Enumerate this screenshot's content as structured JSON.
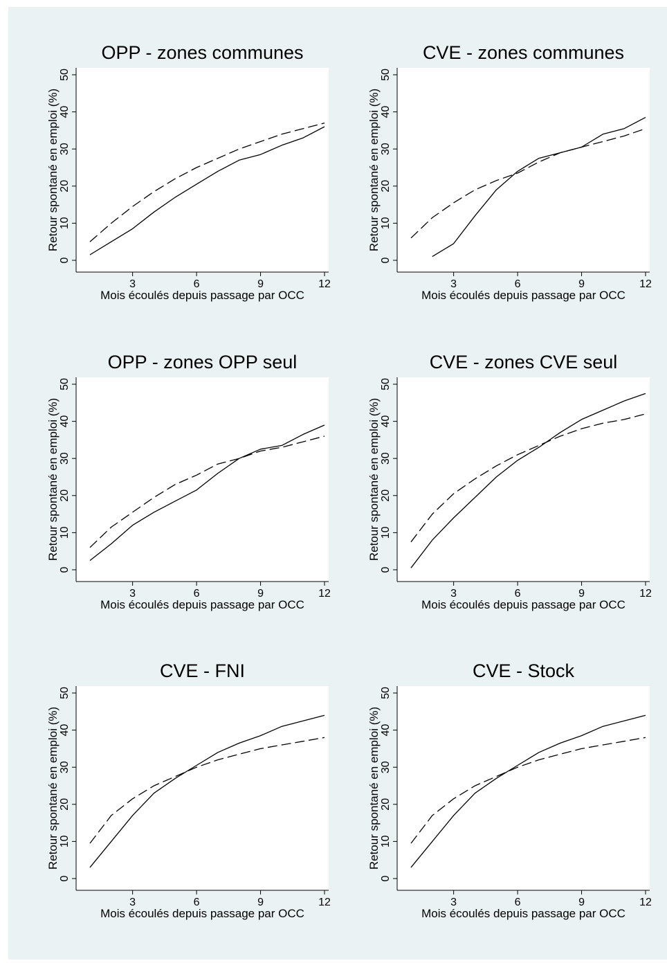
{
  "chart_data": [
    {
      "type": "line",
      "title": "OPP - zones communes",
      "xlabel": "Mois écoulés depuis passage par OCC",
      "ylabel": "Retour spontané en emploi (%)",
      "xlim": [
        1,
        12
      ],
      "ylim": [
        0,
        50
      ],
      "xticks": [
        "3",
        "6",
        "9",
        "12"
      ],
      "yticks": [
        "0",
        "10",
        "20",
        "30",
        "40",
        "50"
      ],
      "grid": false,
      "series": [
        {
          "style": "solid",
          "x": [
            1,
            2,
            3,
            4,
            5,
            6,
            7,
            8,
            9,
            10,
            11,
            12
          ],
          "y": [
            1.5,
            5,
            8.5,
            13,
            17,
            20.5,
            24,
            27,
            28.5,
            31,
            33,
            36
          ]
        },
        {
          "style": "dashed",
          "x": [
            1,
            2,
            3,
            4,
            5,
            6,
            7,
            8,
            9,
            10,
            11,
            12
          ],
          "y": [
            5,
            10,
            14.5,
            18.5,
            22,
            25,
            27.5,
            30,
            32,
            34,
            35.5,
            37
          ]
        }
      ]
    },
    {
      "type": "line",
      "title": "CVE - zones communes",
      "xlabel": "Mois écoulés depuis passage par OCC",
      "ylabel": "Retour spontané en emploi (%)",
      "xlim": [
        1,
        12
      ],
      "ylim": [
        0,
        50
      ],
      "xticks": [
        "3",
        "6",
        "9",
        "12"
      ],
      "yticks": [
        "0",
        "10",
        "20",
        "30",
        "40",
        "50"
      ],
      "grid": false,
      "series": [
        {
          "style": "solid",
          "x": [
            2,
            3,
            4,
            5,
            6,
            7,
            8,
            9,
            10,
            11,
            12
          ],
          "y": [
            1,
            4.5,
            12,
            19,
            24,
            27.5,
            29,
            30.5,
            34,
            35.5,
            38.5
          ]
        },
        {
          "style": "dashed",
          "x": [
            1,
            2,
            3,
            4,
            5,
            6,
            7,
            8,
            9,
            10,
            11,
            12
          ],
          "y": [
            6,
            11.5,
            15.5,
            19,
            21.5,
            23.5,
            26.5,
            29,
            30.5,
            32,
            33.5,
            35.5
          ]
        }
      ]
    },
    {
      "type": "line",
      "title": "OPP - zones OPP seul",
      "xlabel": "Mois écoulés depuis passage par OCC",
      "ylabel": "Retour spontané en emploi (%)",
      "xlim": [
        1,
        12
      ],
      "ylim": [
        0,
        50
      ],
      "xticks": [
        "3",
        "6",
        "9",
        "12"
      ],
      "yticks": [
        "0",
        "10",
        "20",
        "30",
        "40",
        "50"
      ],
      "grid": false,
      "series": [
        {
          "style": "solid",
          "x": [
            1,
            2,
            3,
            4,
            5,
            6,
            7,
            8,
            9,
            10,
            11,
            12
          ],
          "y": [
            2.5,
            7,
            12,
            15.5,
            18.5,
            21.5,
            26,
            30,
            32.5,
            33.5,
            36.5,
            39
          ]
        },
        {
          "style": "dashed",
          "x": [
            1,
            2,
            3,
            4,
            5,
            6,
            7,
            8,
            9,
            10,
            11,
            12
          ],
          "y": [
            6,
            11.5,
            15.5,
            19.5,
            23,
            25.5,
            28.5,
            30,
            32,
            33,
            34.5,
            36
          ]
        }
      ]
    },
    {
      "type": "line",
      "title": "CVE - zones CVE seul",
      "xlabel": "Mois écoulés depuis passage par OCC",
      "ylabel": "Retour spontané en emploi (%)",
      "xlim": [
        1,
        12
      ],
      "ylim": [
        0,
        50
      ],
      "xticks": [
        "3",
        "6",
        "9",
        "12"
      ],
      "yticks": [
        "0",
        "10",
        "20",
        "30",
        "40",
        "50"
      ],
      "grid": false,
      "series": [
        {
          "style": "solid",
          "x": [
            1,
            2,
            3,
            4,
            5,
            6,
            7,
            8,
            9,
            10,
            11,
            12
          ],
          "y": [
            0.5,
            8,
            14,
            19.5,
            25,
            29.5,
            33,
            37,
            40.5,
            43,
            45.5,
            47.5
          ]
        },
        {
          "style": "dashed",
          "x": [
            1,
            2,
            3,
            4,
            5,
            6,
            7,
            8,
            9,
            10,
            11,
            12
          ],
          "y": [
            7.5,
            15,
            20.5,
            24.5,
            28,
            31,
            33.5,
            36,
            38,
            39.5,
            40.5,
            42
          ]
        }
      ]
    },
    {
      "type": "line",
      "title": "CVE - FNI",
      "xlabel": "Mois écoulés depuis passage par OCC",
      "ylabel": "Retour spontané en emploi (%)",
      "xlim": [
        1,
        12
      ],
      "ylim": [
        0,
        50
      ],
      "xticks": [
        "3",
        "6",
        "9",
        "12"
      ],
      "yticks": [
        "0",
        "10",
        "20",
        "30",
        "40",
        "50"
      ],
      "grid": false,
      "series": [
        {
          "style": "solid",
          "x": [
            1,
            2,
            3,
            4,
            5,
            6,
            7,
            8,
            9,
            10,
            11,
            12
          ],
          "y": [
            3,
            10,
            17,
            23,
            27,
            30.5,
            34,
            36.5,
            38.5,
            41,
            42.5,
            44
          ]
        },
        {
          "style": "dashed",
          "x": [
            1,
            2,
            3,
            4,
            5,
            6,
            7,
            8,
            9,
            10,
            11,
            12
          ],
          "y": [
            9.5,
            17,
            21.5,
            25,
            27.5,
            30,
            32,
            33.5,
            35,
            36,
            37,
            38
          ]
        }
      ]
    },
    {
      "type": "line",
      "title": "CVE - Stock",
      "xlabel": "Mois écoulés depuis passage par OCC",
      "ylabel": "Retour spontané en emploi (%)",
      "xlim": [
        1,
        12
      ],
      "ylim": [
        0,
        50
      ],
      "xticks": [
        "3",
        "6",
        "9",
        "12"
      ],
      "yticks": [
        "0",
        "10",
        "20",
        "30",
        "40",
        "50"
      ],
      "grid": false,
      "series": [
        {
          "style": "solid",
          "x": [
            1,
            2,
            3,
            4,
            5,
            6,
            7,
            8,
            9,
            10,
            11,
            12
          ],
          "y": [
            3,
            10,
            17,
            23,
            27,
            30.5,
            34,
            36.5,
            38.5,
            41,
            42.5,
            44
          ]
        },
        {
          "style": "dashed",
          "x": [
            1,
            2,
            3,
            4,
            5,
            6,
            7,
            8,
            9,
            10,
            11,
            12
          ],
          "y": [
            9.5,
            17,
            21.5,
            25,
            27.5,
            30,
            32,
            33.5,
            35,
            36,
            37,
            38
          ]
        }
      ]
    }
  ],
  "colors": {
    "background": "#eaf2f3",
    "plot_area": "#ffffff",
    "line": "#000000"
  }
}
